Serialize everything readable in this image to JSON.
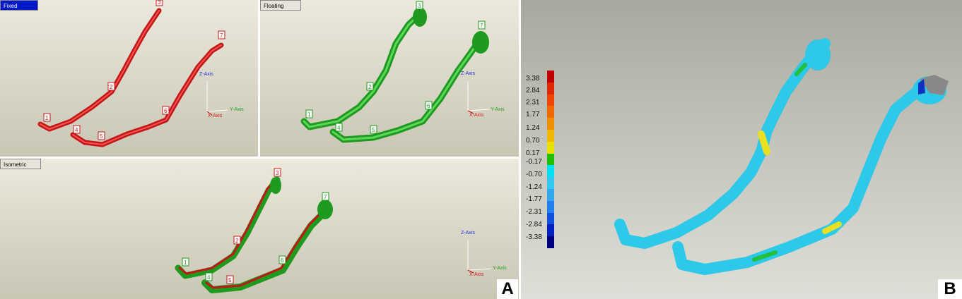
{
  "panel_a": {
    "letter": "A",
    "viewports": {
      "fixed": {
        "tab": "Fixed",
        "markers": [
          "1",
          "2",
          "3",
          "4",
          "5",
          "6",
          "7"
        ],
        "axes": {
          "z": "Z-Axis",
          "y": "Y-Axis",
          "x": "X-Axis"
        }
      },
      "floating": {
        "tab": "Floating",
        "markers": [
          "1",
          "2",
          "3",
          "4",
          "5",
          "6",
          "7"
        ],
        "axes": {
          "z": "Z-Axis",
          "y": "Y-Axis",
          "x": "X-Axis"
        }
      },
      "isometric": {
        "tab": "Isometric",
        "markers": [
          "1",
          "2",
          "3",
          "4",
          "5",
          "6",
          "7"
        ],
        "axes": {
          "z": "Z-Axis",
          "y": "Y-Axis",
          "x": "X-Axis"
        }
      }
    },
    "colors": {
      "fixed": "#d42020",
      "floating": "#2faa2f"
    }
  },
  "panel_b": {
    "letter": "B",
    "colorbar": {
      "labels": [
        "3.38",
        "2.84",
        "2.31",
        "1.77",
        "1.24",
        "0.70",
        "0.17",
        "-0.17",
        "-0.70",
        "-1.24",
        "-1.77",
        "-2.31",
        "-2.84",
        "-3.38"
      ],
      "colors": [
        "#c00000",
        "#e02800",
        "#f04400",
        "#f06800",
        "#f09000",
        "#f0b800",
        "#e8e000",
        "#20c000",
        "#00e0f0",
        "#30c8f0",
        "#30a8f0",
        "#2080f0",
        "#1050e0",
        "#0020c0",
        "#000080"
      ]
    }
  }
}
